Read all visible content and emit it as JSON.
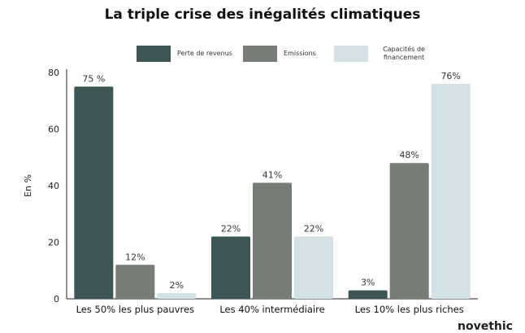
{
  "chart_data": {
    "type": "bar",
    "title": "La triple crise des inégalités climatiques",
    "xlabel": "",
    "ylabel": "En %",
    "ylim": [
      0,
      80
    ],
    "yticks": [
      0,
      20,
      40,
      60,
      80
    ],
    "categories": [
      "Les 50% les plus pauvres",
      "Les 40% intermédiaire",
      "Les 10% les plus riches"
    ],
    "series": [
      {
        "name": "Perte de revenus",
        "values": [
          75,
          22,
          3
        ],
        "labels": [
          "75 %",
          "22%",
          "3%"
        ],
        "color": "#3e5556"
      },
      {
        "name": "Emissions",
        "values": [
          12,
          41,
          48
        ],
        "labels": [
          "12%",
          "41%",
          "48%"
        ],
        "color": "#767d77"
      },
      {
        "name": "Capacités de financement",
        "values": [
          2,
          22,
          76
        ],
        "labels": [
          "2%",
          "22%",
          "76%"
        ],
        "color": "#d3e0e4"
      }
    ],
    "grid": false,
    "legend": "top"
  },
  "branding": {
    "logo_text": "novethic"
  }
}
